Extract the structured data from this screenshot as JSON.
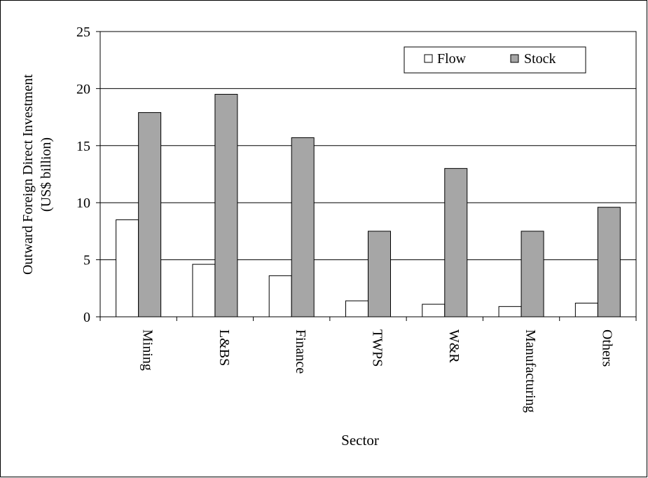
{
  "chart_data": {
    "type": "bar",
    "categories": [
      "Mining",
      "L&BS",
      "Finance",
      "TWPS",
      "W&R",
      "Manufacturing",
      "Others"
    ],
    "series": [
      {
        "name": "Flow",
        "values": [
          8.5,
          4.6,
          3.6,
          1.4,
          1.1,
          0.9,
          1.2
        ]
      },
      {
        "name": "Stock",
        "values": [
          17.9,
          19.5,
          15.7,
          7.5,
          13.0,
          7.5,
          9.6
        ]
      }
    ],
    "title": "",
    "xlabel": "Sector",
    "ylabel_line1": "Outward Foreign Direct Investment",
    "ylabel_line2": "(US$ billion)",
    "ylim": [
      0,
      25
    ],
    "yticks": [
      0,
      5,
      10,
      15,
      20,
      25
    ],
    "grid": true,
    "legend_position": "top-right",
    "colors": {
      "flow": "#ffffff",
      "stock": "#a6a6a6",
      "axis": "#000000"
    }
  }
}
